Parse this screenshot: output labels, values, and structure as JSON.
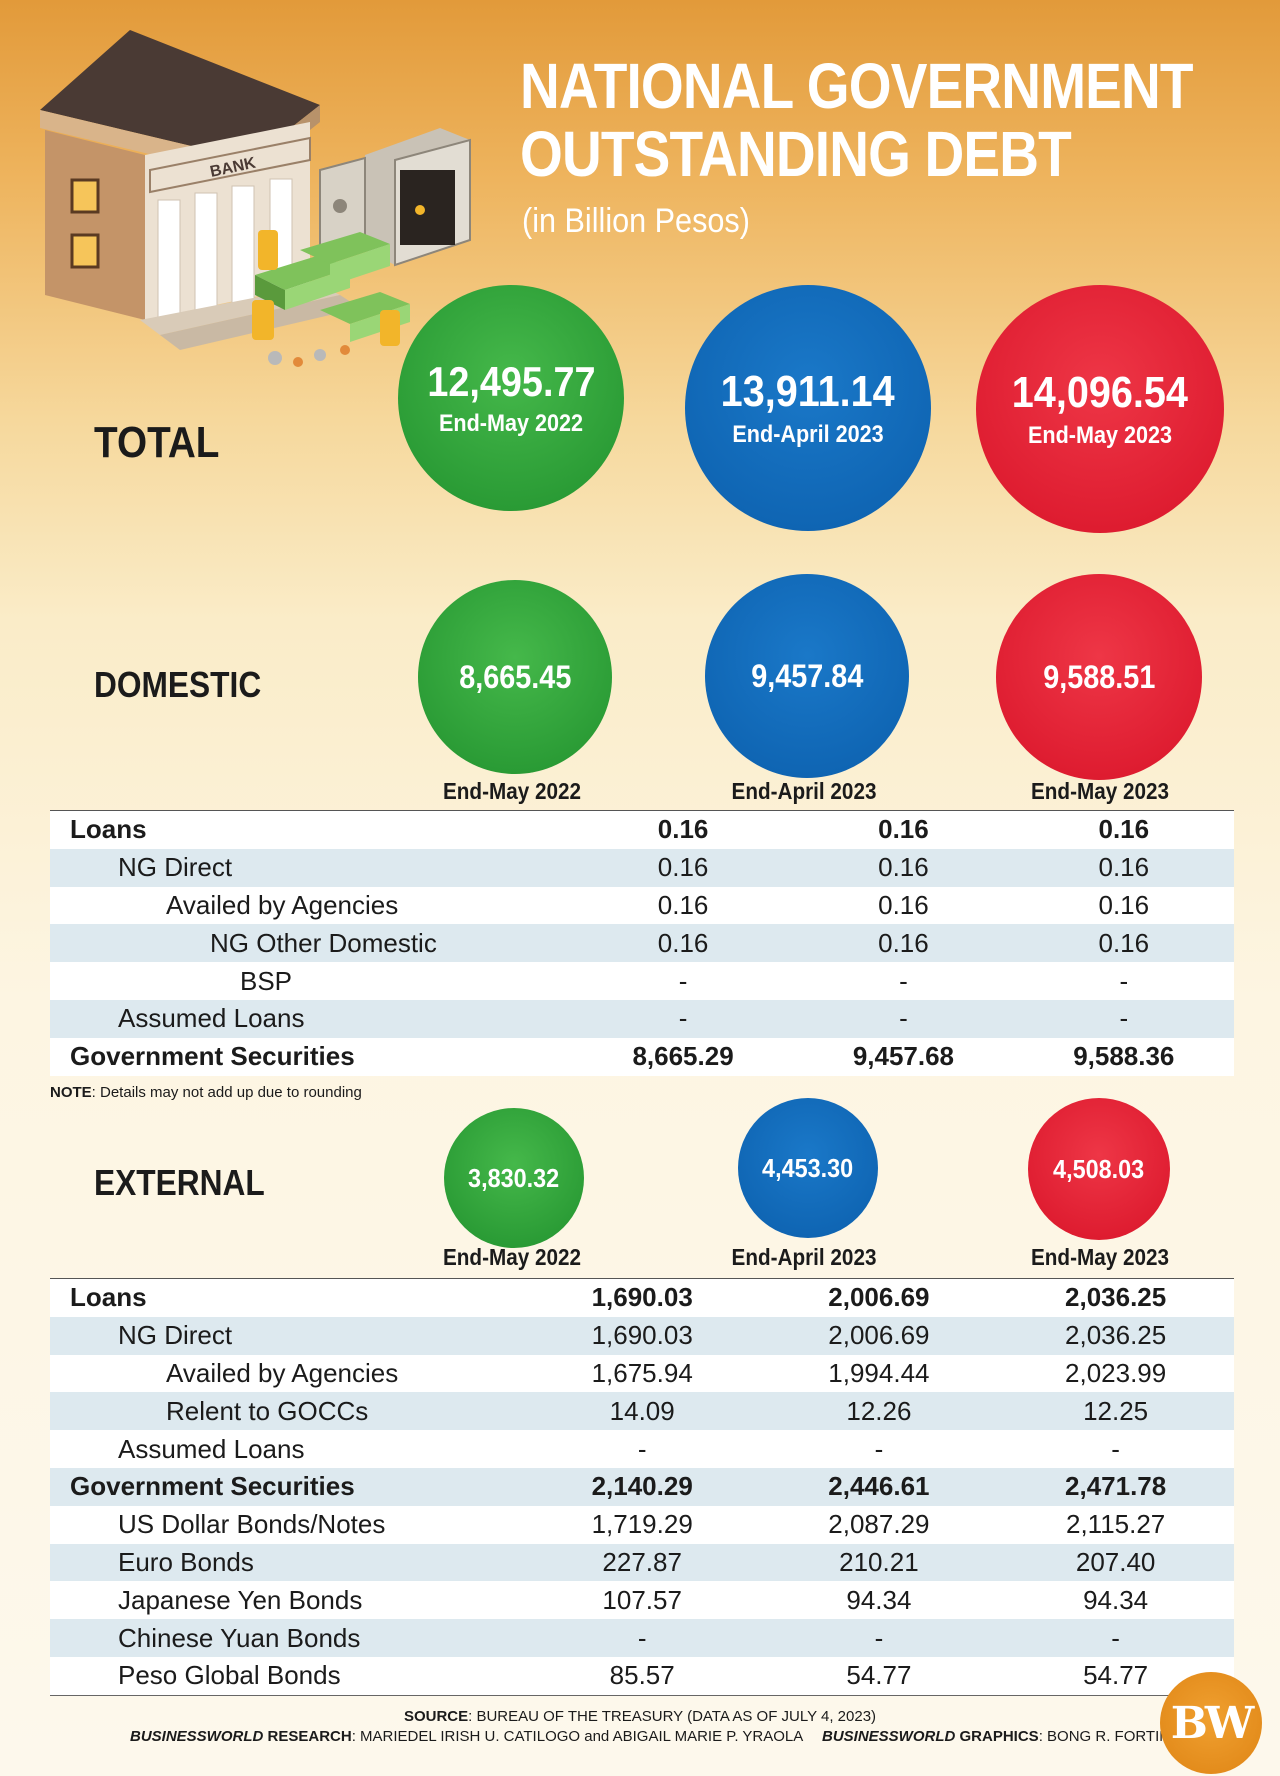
{
  "header": {
    "title_line1": "NATIONAL GOVERNMENT",
    "title_line2": "OUTSTANDING DEBT",
    "subtitle": "(in Billion Pesos)",
    "illustration_sign": "BANK"
  },
  "colors": {
    "green": "#2a9b35",
    "blue": "#0f65b3",
    "red": "#de1c30",
    "accent_orange": "#e28a1a"
  },
  "total": {
    "label": "TOTAL",
    "circles": [
      {
        "value": "12,495.77",
        "period": "End-May 2022"
      },
      {
        "value": "13,911.14",
        "period": "End-April 2023"
      },
      {
        "value": "14,096.54",
        "period": "End-May 2023"
      }
    ]
  },
  "domestic": {
    "label": "DOMESTIC",
    "circles": [
      "8,665.45",
      "9,457.84",
      "9,588.51"
    ],
    "periods": [
      "End-May 2022",
      "End-April 2023",
      "End-May 2023"
    ],
    "rows": [
      {
        "label": "Loans",
        "values": [
          "0.16",
          "0.16",
          "0.16"
        ]
      },
      {
        "label": "NG Direct",
        "values": [
          "0.16",
          "0.16",
          "0.16"
        ]
      },
      {
        "label": "Availed by Agencies",
        "values": [
          "0.16",
          "0.16",
          "0.16"
        ]
      },
      {
        "label": "NG Other Domestic",
        "values": [
          "0.16",
          "0.16",
          "0.16"
        ]
      },
      {
        "label": "BSP",
        "values": [
          "-",
          "-",
          "-"
        ]
      },
      {
        "label": "Assumed Loans",
        "values": [
          "-",
          "-",
          "-"
        ]
      },
      {
        "label": "Government Securities",
        "values": [
          "8,665.29",
          "9,457.68",
          "9,588.36"
        ]
      }
    ],
    "note_bold": "NOTE",
    "note_text": ": Details may not add up due to rounding"
  },
  "external": {
    "label": "EXTERNAL",
    "circles": [
      "3,830.32",
      "4,453.30",
      "4,508.03"
    ],
    "periods": [
      "End-May 2022",
      "End-April 2023",
      "End-May 2023"
    ],
    "rows": [
      {
        "label": "Loans",
        "values": [
          "1,690.03",
          "2,006.69",
          "2,036.25"
        ]
      },
      {
        "label": "NG Direct",
        "values": [
          "1,690.03",
          "2,006.69",
          "2,036.25"
        ]
      },
      {
        "label": "Availed by Agencies",
        "values": [
          "1,675.94",
          "1,994.44",
          "2,023.99"
        ]
      },
      {
        "label": "Relent to GOCCs",
        "values": [
          "14.09",
          "12.26",
          "12.25"
        ]
      },
      {
        "label": "Assumed Loans",
        "values": [
          "-",
          "-",
          "-"
        ]
      },
      {
        "label": "Government Securities",
        "values": [
          "2,140.29",
          "2,446.61",
          "2,471.78"
        ]
      },
      {
        "label": "US Dollar Bonds/Notes",
        "values": [
          "1,719.29",
          "2,087.29",
          "2,115.27"
        ]
      },
      {
        "label": "Euro Bonds",
        "values": [
          "227.87",
          "210.21",
          "207.40"
        ]
      },
      {
        "label": "Japanese Yen Bonds",
        "values": [
          "107.57",
          "94.34",
          "94.34"
        ]
      },
      {
        "label": "Chinese Yuan Bonds",
        "values": [
          "-",
          "-",
          "-"
        ]
      },
      {
        "label": "Peso Global Bonds",
        "values": [
          "85.57",
          "54.77",
          "54.77"
        ]
      }
    ]
  },
  "footer": {
    "source_label": "SOURCE",
    "source_text": ": BUREAU OF THE TREASURY (DATA AS OF JULY 4, 2023)",
    "research_brand": "BUSINESSWORLD",
    "research_label": " RESEARCH",
    "research_text": ": MARIEDEL IRISH U. CATILOGO and ABIGAIL MARIE P. YRAOLA",
    "graphics_brand": "BUSINESSWORLD",
    "graphics_label": " GRAPHICS",
    "graphics_text": ": BONG R. FORTIN",
    "logo": "BW"
  }
}
